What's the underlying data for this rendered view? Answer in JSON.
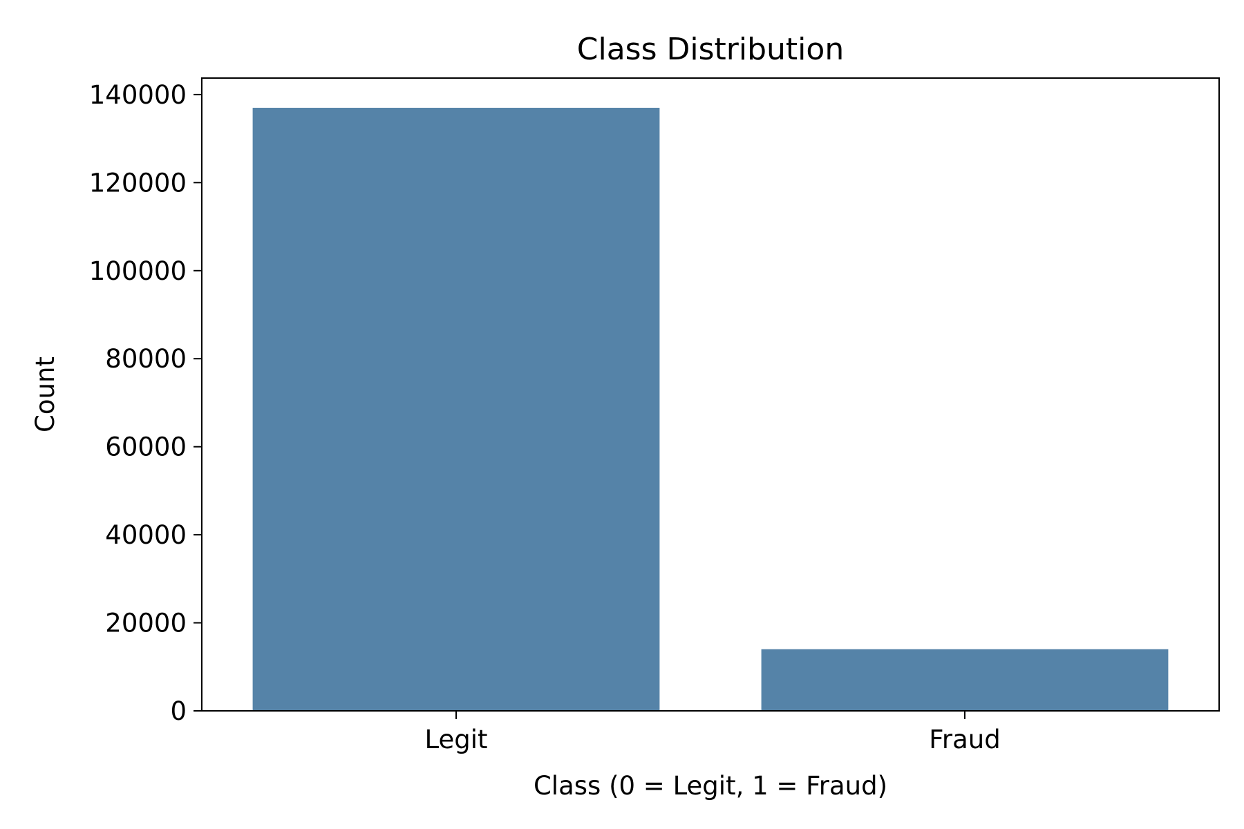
{
  "chart_data": {
    "type": "bar",
    "title": "Class Distribution",
    "xlabel": "Class (0 = Legit, 1 = Fraud)",
    "ylabel": "Count",
    "categories": [
      "Legit",
      "Fraud"
    ],
    "values": [
      137000,
      14000
    ],
    "ylim": [
      0,
      143750
    ],
    "yticks": [
      0,
      20000,
      40000,
      60000,
      80000,
      100000,
      120000,
      140000
    ],
    "grid": false,
    "legend": "none",
    "bar_color": "#5583a8"
  }
}
